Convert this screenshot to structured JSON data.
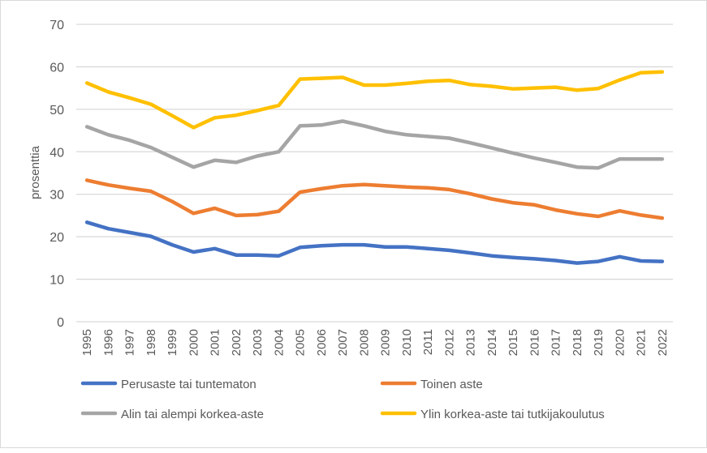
{
  "chart_data": {
    "type": "line",
    "ylabel": "prosenttia",
    "xlabel": "",
    "ylim": [
      0,
      70
    ],
    "yticks": [
      0,
      10,
      20,
      30,
      40,
      50,
      60,
      70
    ],
    "grid": true,
    "legend_placement": "bottom",
    "categories": [
      "1995",
      "1996",
      "1997",
      "1998",
      "1999",
      "2000",
      "2001",
      "2002",
      "2003",
      "2004",
      "2005",
      "2006",
      "2007",
      "2008",
      "2009",
      "2010",
      "2011",
      "2012",
      "2013",
      "2014",
      "2015",
      "2016",
      "2017",
      "2018",
      "2019",
      "2020",
      "2021",
      "2022"
    ],
    "series": [
      {
        "name": "Perusaste tai tuntematon",
        "color": "#4472c4",
        "values": [
          23.4,
          21.9,
          21.0,
          20.1,
          18.1,
          16.4,
          17.2,
          15.7,
          15.7,
          15.5,
          17.5,
          17.9,
          18.1,
          18.1,
          17.6,
          17.6,
          17.2,
          16.8,
          16.2,
          15.5,
          15.1,
          14.8,
          14.4,
          13.8,
          14.2,
          15.3,
          14.3,
          14.2
        ]
      },
      {
        "name": "Toinen aste",
        "color": "#ed7d31",
        "values": [
          33.3,
          32.2,
          31.4,
          30.7,
          28.3,
          25.5,
          26.7,
          25.0,
          25.2,
          26.0,
          30.5,
          31.3,
          32.0,
          32.3,
          32.0,
          31.7,
          31.5,
          31.1,
          30.1,
          28.9,
          28.0,
          27.5,
          26.3,
          25.4,
          24.8,
          26.1,
          25.1,
          24.4
        ]
      },
      {
        "name": "Alin tai alempi korkea-aste",
        "color": "#a5a5a5",
        "values": [
          45.9,
          44.0,
          42.7,
          41.0,
          38.7,
          36.4,
          38.0,
          37.5,
          39.0,
          40.0,
          46.1,
          46.3,
          47.2,
          46.1,
          44.8,
          44.0,
          43.6,
          43.2,
          42.1,
          40.9,
          39.7,
          38.5,
          37.5,
          36.4,
          36.2,
          38.3,
          38.3,
          38.3
        ]
      },
      {
        "name": "Ylin korkea-aste tai tutkijakoulutus",
        "color": "#ffc000",
        "values": [
          56.2,
          54.1,
          52.7,
          51.2,
          48.5,
          45.7,
          48.0,
          48.6,
          49.7,
          50.9,
          57.1,
          57.3,
          57.5,
          55.7,
          55.7,
          56.1,
          56.6,
          56.8,
          55.8,
          55.4,
          54.8,
          55.0,
          55.2,
          54.5,
          54.9,
          56.9,
          58.6,
          58.8
        ]
      }
    ]
  }
}
